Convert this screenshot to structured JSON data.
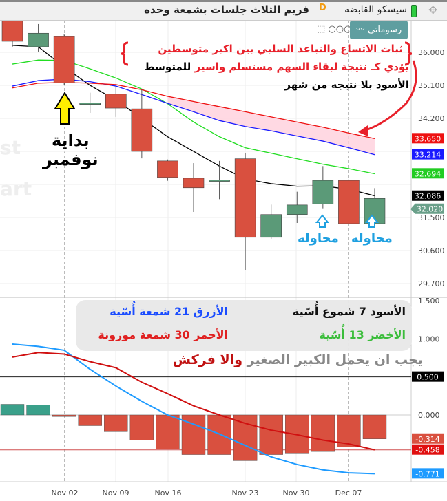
{
  "header": {
    "title": "فريم الثلاث جلسات بشمعة وحده",
    "symbol": "سيسكو القابضة",
    "badge": "D",
    "my_drawings": "رسوماتي",
    "more": "○○○"
  },
  "annotations": {
    "line1": "ثبات الاتساع والتباعد السلبي بين اكبر متوسطين",
    "line2_red": "يؤدي كـ نتيجة  لبقاء السهم مستسلم واسير",
    "line2_black": "للمتوسط",
    "line3": "الأسود بلا نتيجه من شهر",
    "start1": "بداية",
    "start2": "نوفمبر",
    "attempt1": "محاوله",
    "attempt2": "محاوله",
    "watermark1": "st",
    "watermark2": "art",
    "note_gray": "يجب ان يحمل الكبير الصغير",
    "note_red": "والا فركش"
  },
  "legend": {
    "black": "الأسود 7 شموع أُسّية",
    "blue": "الأزرق 21 شمعة أُسّية",
    "green": "الأخضر 13 أُسّية",
    "red": "الأحمر 30 شمعة موزونة"
  },
  "colors": {
    "up": "#5b9a78",
    "down": "#d9503f",
    "black": "#000000",
    "green": "#22dd22",
    "blue": "#1a1aff",
    "red": "#ee1111",
    "osc_blue": "#1e9bff",
    "osc_red": "#d01010"
  },
  "chart_data": [
    {
      "type": "candlestick",
      "dates": [
        "Nov 02",
        "Nov 09",
        "Nov 16",
        "Nov 23",
        "Nov 30",
        "Dec 07"
      ],
      "ylim": [
        29.4,
        37.5
      ],
      "yticks": [
        "36.000",
        "35.100",
        "34.200",
        "31.500",
        "30.600",
        "29.700"
      ],
      "candles": [
        {
          "o": 37.3,
          "h": 37.5,
          "l": 36.15,
          "c": 36.3
        },
        {
          "o": 36.15,
          "h": 36.77,
          "l": 36.02,
          "c": 36.52
        },
        {
          "o": 36.43,
          "h": 36.5,
          "l": 35.1,
          "c": 35.17
        },
        {
          "o": 34.58,
          "h": 34.9,
          "l": 34.35,
          "c": 34.62
        },
        {
          "o": 34.86,
          "h": 35.08,
          "l": 34.24,
          "c": 34.48
        },
        {
          "o": 34.46,
          "h": 34.98,
          "l": 33.11,
          "c": 33.3
        },
        {
          "o": 33.04,
          "h": 33.08,
          "l": 32.5,
          "c": 32.59
        },
        {
          "o": 32.57,
          "h": 32.98,
          "l": 31.65,
          "c": 32.31
        },
        {
          "o": 32.49,
          "h": 33.04,
          "l": 32.0,
          "c": 32.52
        },
        {
          "o": 33.1,
          "h": 33.26,
          "l": 30.06,
          "c": 30.96
        },
        {
          "o": 30.96,
          "h": 31.85,
          "l": 30.9,
          "c": 31.58
        },
        {
          "o": 31.58,
          "h": 32.2,
          "l": 31.35,
          "c": 31.84
        },
        {
          "o": 31.87,
          "h": 32.9,
          "l": 31.75,
          "c": 32.51
        },
        {
          "o": 32.51,
          "h": 32.55,
          "l": 31.3,
          "c": 31.33
        },
        {
          "o": 31.33,
          "h": 32.3,
          "l": 31.25,
          "c": 32.02
        }
      ],
      "lines": [
        {
          "color": "black",
          "values": [
            36.19,
            36.15,
            35.6,
            35.1,
            34.7,
            34.2,
            33.7,
            33.3,
            32.9,
            32.55,
            32.42,
            32.35,
            32.36,
            32.27,
            32.09
          ],
          "last": "32.086"
        },
        {
          "color": "green",
          "values": [
            35.68,
            35.79,
            35.78,
            35.55,
            35.3,
            35.0,
            34.6,
            34.1,
            33.7,
            33.4,
            33.25,
            33.1,
            32.95,
            32.83,
            32.69
          ],
          "last": "32.694"
        },
        {
          "color": "blue",
          "values": [
            35.08,
            35.23,
            35.27,
            35.2,
            35.08,
            34.85,
            34.61,
            34.38,
            34.14,
            33.98,
            33.86,
            33.72,
            33.58,
            33.4,
            33.21
          ],
          "last": "33.214"
        },
        {
          "color": "red",
          "values": [
            35.03,
            35.16,
            35.18,
            35.16,
            35.12,
            34.98,
            34.8,
            34.66,
            34.52,
            34.38,
            34.24,
            34.1,
            33.96,
            33.8,
            33.65
          ],
          "last": "33.650"
        }
      ],
      "last_price": "32.020"
    },
    {
      "type": "bar+line",
      "ylim": [
        -0.9,
        1.55
      ],
      "yticks": [
        "1.500",
        "1.000",
        "0.000"
      ],
      "level": "0.500",
      "histogram": [
        0.14,
        0.13,
        -0.02,
        -0.14,
        -0.22,
        -0.33,
        -0.45,
        -0.52,
        -0.52,
        -0.6,
        -0.52,
        -0.5,
        -0.48,
        -0.42,
        -0.314
      ],
      "blue": [
        0.93,
        0.9,
        0.85,
        0.6,
        0.38,
        0.18,
        0.0,
        -0.12,
        -0.25,
        -0.4,
        -0.55,
        -0.65,
        -0.72,
        -0.76,
        -0.771
      ],
      "red": [
        0.76,
        0.82,
        0.8,
        0.7,
        0.62,
        0.43,
        0.28,
        0.12,
        0.0,
        -0.11,
        -0.2,
        -0.26,
        -0.33,
        -0.38,
        -0.458
      ],
      "last_labels": {
        "histogram": "-0.314",
        "red": "-0.458",
        "blue": "-0.771"
      }
    }
  ]
}
